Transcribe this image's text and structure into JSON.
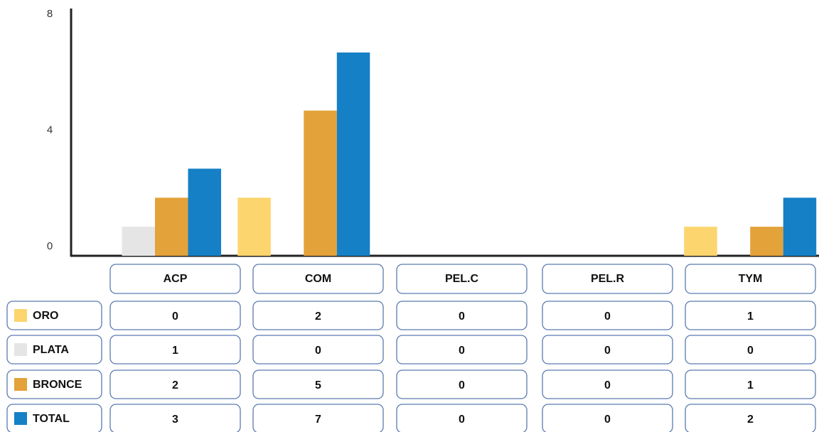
{
  "chart_data": {
    "type": "bar",
    "categories": [
      "ACP",
      "COM",
      "PEL.C",
      "PEL.R",
      "TYM"
    ],
    "series": [
      {
        "name": "ORO",
        "color": "#fdd56e",
        "values": [
          0,
          2,
          0,
          0,
          1
        ]
      },
      {
        "name": "PLATA",
        "color": "#e5e5e5",
        "values": [
          1,
          0,
          0,
          0,
          0
        ]
      },
      {
        "name": "BRONCE",
        "color": "#e3a23a",
        "values": [
          2,
          5,
          0,
          0,
          1
        ]
      },
      {
        "name": "TOTAL",
        "color": "#1580c6",
        "values": [
          3,
          7,
          0,
          0,
          2
        ]
      }
    ],
    "ylim": [
      0,
      8
    ],
    "yticks": [
      0,
      4,
      8
    ],
    "grid": false
  }
}
